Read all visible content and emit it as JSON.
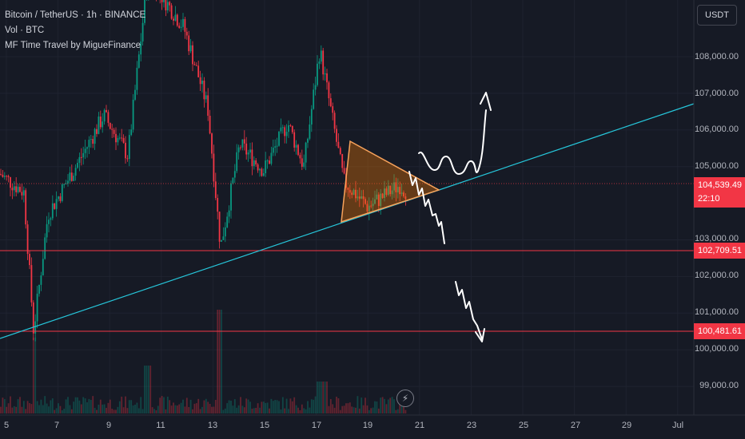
{
  "legend": {
    "symbol": "Bitcoin / TetherUS · 1h · BINANCE",
    "volume": "Vol · BTC",
    "indicator": "MF Time Travel by MigueFinance"
  },
  "currency_button": "USDT",
  "price_axis": {
    "ticks": [
      "108,000.00",
      "107,000.00",
      "106,000.00",
      "105,000.00",
      "103,000.00",
      "102,000.00",
      "101,000.00",
      "100,000.00",
      "99,000.00"
    ],
    "tick_values": [
      108000,
      107000,
      106000,
      105000,
      103000,
      102000,
      101000,
      100000,
      99000
    ]
  },
  "time_axis": {
    "ticks": [
      "5",
      "7",
      "9",
      "11",
      "13",
      "15",
      "17",
      "19",
      "21",
      "23",
      "25",
      "27",
      "29",
      "Jul"
    ]
  },
  "price_lines": {
    "line_1": {
      "label": "102,709.51",
      "value": 102709.51
    },
    "line_2": {
      "label": "100,481.61",
      "value": 100481.61
    }
  },
  "current_price": {
    "value_label": "104,539.49",
    "countdown": "22:10",
    "value": 104539.49
  },
  "replay_icon": "lightning-icon",
  "colors": {
    "background": "#161a25",
    "up_candle": "#089981",
    "down_candle": "#f23645",
    "trendline": "#26c6da",
    "horizontal_line": "#f23645",
    "triangle_stroke": "#f7a25b",
    "triangle_fill": "#f57c00",
    "drawing": "#ffffff"
  }
}
